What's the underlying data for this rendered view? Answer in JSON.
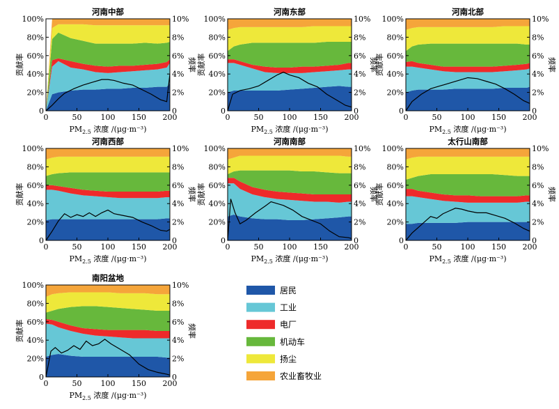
{
  "colors": {
    "residential": "#1f57a8",
    "industry": "#66c7d6",
    "power": "#ee2a2a",
    "vehicle": "#67b83c",
    "dust": "#eee83a",
    "agriculture": "#f5a53a"
  },
  "legend": [
    "居民",
    "工业",
    "电厂",
    "机动车",
    "扬尘",
    "农业畜牧业"
  ],
  "axis": {
    "xlabel_prefix": "PM",
    "xlabel_sub": "2.5",
    "xlabel_suffix": " 浓度 /(μg·m⁻³)",
    "ylabel_left": "贡献率",
    "ylabel_right": "频率",
    "left_ticks": [
      "0",
      "20%",
      "40%",
      "60%",
      "80%",
      "100%"
    ],
    "right_ticks": [
      "0",
      "2%",
      "4%",
      "6%",
      "8%",
      "10%"
    ],
    "x_ticks": [
      "0",
      "50",
      "100",
      "150",
      "200"
    ]
  },
  "chart_data": [
    {
      "type": "area",
      "title": "河南中部",
      "x": [
        0,
        10,
        20,
        40,
        60,
        80,
        100,
        120,
        140,
        160,
        180,
        195,
        200
      ],
      "series": [
        {
          "name": "居民",
          "values": [
            0,
            18,
            20,
            22,
            23,
            23,
            24,
            24,
            25,
            25,
            26,
            26,
            30
          ]
        },
        {
          "name": "工业",
          "values": [
            0,
            48,
            54,
            47,
            45,
            42,
            41,
            42,
            43,
            44,
            45,
            47,
            52
          ]
        },
        {
          "name": "电厂",
          "values": [
            0,
            55,
            57,
            54,
            51,
            49,
            48,
            49,
            49,
            50,
            51,
            53,
            56
          ]
        },
        {
          "name": "机动车",
          "values": [
            0,
            78,
            85,
            79,
            76,
            73,
            73,
            73,
            73,
            74,
            73,
            74,
            75
          ]
        },
        {
          "name": "扬尘",
          "values": [
            0,
            90,
            94,
            94,
            94,
            93,
            93,
            93,
            93,
            93,
            93,
            93,
            93
          ]
        },
        {
          "name": "农业畜牧业",
          "values": [
            0,
            100,
            100,
            100,
            100,
            100,
            100,
            100,
            100,
            100,
            100,
            100,
            100
          ]
        }
      ],
      "frequency": {
        "x": [
          0,
          10,
          20,
          30,
          45,
          60,
          75,
          90,
          100,
          110,
          125,
          140,
          155,
          170,
          185,
          195,
          200
        ],
        "values": [
          0,
          0.6,
          1.3,
          1.9,
          2.4,
          2.8,
          3.1,
          3.4,
          3.4,
          3.3,
          3.0,
          2.8,
          2.3,
          1.8,
          1.2,
          1.0,
          4.0
        ]
      },
      "ylim": [
        0,
        100
      ],
      "y2lim": [
        0,
        10
      ],
      "xlim": [
        0,
        200
      ]
    },
    {
      "type": "area",
      "title": "河南东部",
      "x": [
        0,
        10,
        20,
        40,
        60,
        80,
        100,
        120,
        140,
        160,
        180,
        195,
        200
      ],
      "series": [
        {
          "name": "居民",
          "values": [
            20,
            22,
            22,
            22,
            22,
            22,
            23,
            24,
            25,
            26,
            27,
            26,
            26
          ]
        },
        {
          "name": "工业",
          "values": [
            52,
            52,
            50,
            46,
            42,
            41,
            41,
            41,
            42,
            43,
            44,
            45,
            45
          ]
        },
        {
          "name": "电厂",
          "values": [
            56,
            56,
            54,
            50,
            48,
            47,
            47,
            48,
            48,
            49,
            50,
            52,
            52
          ]
        },
        {
          "name": "机动车",
          "values": [
            65,
            70,
            72,
            74,
            74,
            74,
            74,
            74,
            74,
            75,
            75,
            75,
            75
          ]
        },
        {
          "name": "扬尘",
          "values": [
            88,
            90,
            91,
            91,
            91,
            91,
            91,
            91,
            92,
            92,
            92,
            92,
            92
          ]
        },
        {
          "name": "农业畜牧业",
          "values": [
            100,
            100,
            100,
            100,
            100,
            100,
            100,
            100,
            100,
            100,
            100,
            100,
            100
          ]
        }
      ],
      "frequency": {
        "x": [
          0,
          8,
          20,
          35,
          50,
          65,
          80,
          90,
          100,
          115,
          130,
          145,
          160,
          175,
          190,
          200
        ],
        "values": [
          0,
          1.8,
          2.2,
          2.4,
          2.7,
          3.3,
          3.9,
          4.2,
          3.9,
          3.6,
          3.0,
          2.6,
          1.8,
          1.2,
          0.6,
          0.4
        ]
      },
      "ylim": [
        0,
        100
      ],
      "y2lim": [
        0,
        10
      ],
      "xlim": [
        0,
        200
      ]
    },
    {
      "type": "area",
      "title": "河南北部",
      "x": [
        0,
        10,
        20,
        40,
        60,
        80,
        100,
        120,
        140,
        160,
        180,
        195,
        200
      ],
      "series": [
        {
          "name": "居民",
          "values": [
            20,
            22,
            23,
            23,
            23,
            24,
            24,
            24,
            24,
            25,
            25,
            25,
            26
          ]
        },
        {
          "name": "工业",
          "values": [
            48,
            48,
            47,
            45,
            43,
            42,
            42,
            42,
            42,
            43,
            44,
            45,
            46
          ]
        },
        {
          "name": "电厂",
          "values": [
            53,
            54,
            52,
            50,
            48,
            48,
            48,
            48,
            48,
            49,
            50,
            51,
            52
          ]
        },
        {
          "name": "机动车",
          "values": [
            65,
            70,
            72,
            73,
            73,
            73,
            73,
            73,
            73,
            73,
            73,
            72,
            72
          ]
        },
        {
          "name": "扬尘",
          "values": [
            88,
            90,
            91,
            91,
            91,
            91,
            91,
            91,
            91,
            92,
            92,
            92,
            92
          ]
        },
        {
          "name": "农业畜牧业",
          "values": [
            100,
            100,
            100,
            100,
            100,
            100,
            100,
            100,
            100,
            100,
            100,
            100,
            100
          ]
        }
      ],
      "frequency": {
        "x": [
          0,
          10,
          25,
          40,
          55,
          70,
          85,
          100,
          115,
          130,
          145,
          160,
          175,
          190,
          200
        ],
        "values": [
          0,
          1.0,
          1.8,
          2.4,
          2.7,
          3.0,
          3.3,
          3.6,
          3.5,
          3.2,
          2.9,
          2.4,
          1.8,
          1.1,
          0.8
        ]
      },
      "ylim": [
        0,
        100
      ],
      "y2lim": [
        0,
        10
      ],
      "xlim": [
        0,
        200
      ]
    },
    {
      "type": "area",
      "title": "河南西部",
      "x": [
        0,
        10,
        20,
        40,
        60,
        80,
        100,
        120,
        140,
        160,
        180,
        195,
        200
      ],
      "series": [
        {
          "name": "居民",
          "values": [
            22,
            23,
            23,
            23,
            23,
            23,
            23,
            23,
            23,
            23,
            23,
            24,
            24
          ]
        },
        {
          "name": "工业",
          "values": [
            55,
            55,
            54,
            51,
            49,
            48,
            47,
            46,
            46,
            46,
            46,
            47,
            47
          ]
        },
        {
          "name": "电厂",
          "values": [
            60,
            60,
            59,
            57,
            55,
            54,
            53,
            53,
            53,
            53,
            53,
            54,
            54
          ]
        },
        {
          "name": "机动车",
          "values": [
            70,
            72,
            73,
            74,
            74,
            74,
            74,
            74,
            74,
            74,
            74,
            74,
            74
          ]
        },
        {
          "name": "扬尘",
          "values": [
            88,
            90,
            91,
            91,
            91,
            91,
            91,
            91,
            91,
            91,
            91,
            91,
            91
          ]
        },
        {
          "name": "农业畜牧业",
          "values": [
            100,
            100,
            100,
            100,
            100,
            100,
            100,
            100,
            100,
            100,
            100,
            100,
            100
          ]
        }
      ],
      "frequency": {
        "x": [
          0,
          10,
          20,
          30,
          40,
          50,
          60,
          70,
          80,
          90,
          100,
          110,
          125,
          140,
          155,
          170,
          185,
          195,
          200
        ],
        "values": [
          0,
          1.0,
          2.1,
          2.9,
          2.5,
          2.8,
          2.6,
          3.0,
          2.6,
          3.0,
          3.3,
          2.9,
          2.7,
          2.5,
          2.0,
          1.6,
          1.1,
          1.0,
          1.2
        ]
      },
      "ylim": [
        0,
        100
      ],
      "y2lim": [
        0,
        10
      ],
      "xlim": [
        0,
        200
      ]
    },
    {
      "type": "area",
      "title": "河南南部",
      "x": [
        0,
        10,
        20,
        40,
        60,
        80,
        100,
        120,
        140,
        160,
        180,
        195,
        200
      ],
      "series": [
        {
          "name": "居民",
          "values": [
            26,
            28,
            26,
            24,
            23,
            23,
            22,
            22,
            23,
            24,
            25,
            26,
            26
          ]
        },
        {
          "name": "工业",
          "values": [
            62,
            62,
            56,
            50,
            47,
            45,
            44,
            43,
            42,
            42,
            41,
            42,
            42
          ]
        },
        {
          "name": "电厂",
          "values": [
            68,
            68,
            64,
            58,
            55,
            53,
            52,
            51,
            50,
            50,
            50,
            50,
            50
          ]
        },
        {
          "name": "机动车",
          "values": [
            72,
            75,
            76,
            76,
            76,
            76,
            76,
            75,
            75,
            74,
            73,
            73,
            73
          ]
        },
        {
          "name": "扬尘",
          "values": [
            88,
            90,
            92,
            92,
            92,
            92,
            92,
            92,
            92,
            92,
            92,
            91,
            91
          ]
        },
        {
          "name": "农业畜牧业",
          "values": [
            100,
            100,
            100,
            100,
            100,
            100,
            100,
            100,
            100,
            100,
            100,
            100,
            100
          ]
        }
      ],
      "frequency": {
        "x": [
          0,
          5,
          12,
          20,
          30,
          45,
          60,
          70,
          80,
          90,
          105,
          120,
          135,
          150,
          165,
          180,
          195,
          200
        ],
        "values": [
          0,
          4.5,
          3.0,
          1.8,
          2.2,
          3.0,
          3.7,
          4.2,
          4.0,
          3.8,
          3.3,
          2.6,
          2.2,
          1.8,
          1.0,
          0.4,
          0.3,
          0.2
        ]
      },
      "ylim": [
        0,
        100
      ],
      "y2lim": [
        0,
        10
      ],
      "xlim": [
        0,
        200
      ]
    },
    {
      "type": "area",
      "title": "太行山南部",
      "x": [
        0,
        10,
        20,
        40,
        60,
        80,
        100,
        120,
        140,
        160,
        180,
        195,
        200
      ],
      "series": [
        {
          "name": "居民",
          "values": [
            18,
            18,
            19,
            19,
            19,
            19,
            20,
            20,
            20,
            20,
            20,
            20,
            20
          ]
        },
        {
          "name": "工业",
          "values": [
            48,
            48,
            47,
            45,
            43,
            42,
            41,
            41,
            41,
            41,
            41,
            42,
            42
          ]
        },
        {
          "name": "电厂",
          "values": [
            56,
            56,
            54,
            52,
            50,
            49,
            49,
            48,
            48,
            48,
            48,
            49,
            49
          ]
        },
        {
          "name": "机动车",
          "values": [
            66,
            68,
            70,
            72,
            72,
            72,
            72,
            72,
            72,
            71,
            70,
            70,
            70
          ]
        },
        {
          "name": "扬尘",
          "values": [
            88,
            90,
            91,
            91,
            91,
            91,
            91,
            91,
            91,
            91,
            91,
            91,
            91
          ]
        },
        {
          "name": "农业畜牧业",
          "values": [
            100,
            100,
            100,
            100,
            100,
            100,
            100,
            100,
            100,
            100,
            100,
            100,
            100
          ]
        }
      ],
      "frequency": {
        "x": [
          0,
          10,
          20,
          30,
          40,
          50,
          60,
          70,
          80,
          90,
          100,
          115,
          130,
          145,
          160,
          175,
          190,
          200
        ],
        "values": [
          0,
          0.8,
          1.4,
          2.0,
          2.6,
          2.4,
          2.9,
          3.2,
          3.5,
          3.4,
          3.2,
          3.0,
          3.0,
          2.7,
          2.4,
          1.9,
          1.3,
          1.0
        ]
      },
      "ylim": [
        0,
        100
      ],
      "y2lim": [
        0,
        10
      ],
      "xlim": [
        0,
        200
      ]
    },
    {
      "type": "area",
      "title": "南阳盆地",
      "x": [
        0,
        10,
        20,
        40,
        60,
        80,
        100,
        120,
        140,
        160,
        180,
        195,
        200
      ],
      "series": [
        {
          "name": "居民",
          "values": [
            22,
            24,
            25,
            23,
            22,
            22,
            22,
            22,
            22,
            22,
            22,
            21,
            21
          ]
        },
        {
          "name": "工业",
          "values": [
            58,
            57,
            54,
            50,
            47,
            45,
            44,
            43,
            42,
            42,
            42,
            42,
            42
          ]
        },
        {
          "name": "电厂",
          "values": [
            63,
            62,
            60,
            56,
            53,
            52,
            51,
            51,
            51,
            51,
            50,
            50,
            50
          ]
        },
        {
          "name": "机动车",
          "values": [
            70,
            72,
            74,
            76,
            77,
            77,
            76,
            75,
            74,
            73,
            72,
            72,
            72
          ]
        },
        {
          "name": "扬尘",
          "values": [
            87,
            90,
            91,
            92,
            92,
            92,
            92,
            91,
            91,
            91,
            90,
            90,
            90
          ]
        },
        {
          "name": "农业畜牧业",
          "values": [
            100,
            100,
            100,
            100,
            100,
            100,
            100,
            100,
            100,
            100,
            100,
            100,
            100
          ]
        }
      ],
      "frequency": {
        "x": [
          0,
          8,
          15,
          25,
          35,
          45,
          55,
          65,
          75,
          85,
          95,
          105,
          120,
          135,
          150,
          165,
          180,
          195,
          200
        ],
        "values": [
          0,
          2.8,
          3.2,
          2.6,
          2.9,
          3.4,
          3.0,
          3.9,
          3.4,
          3.6,
          4.1,
          3.6,
          3.0,
          2.4,
          1.4,
          0.8,
          0.5,
          0.3,
          0.2
        ]
      },
      "ylim": [
        0,
        100
      ],
      "y2lim": [
        0,
        10
      ],
      "xlim": [
        0,
        200
      ]
    }
  ]
}
